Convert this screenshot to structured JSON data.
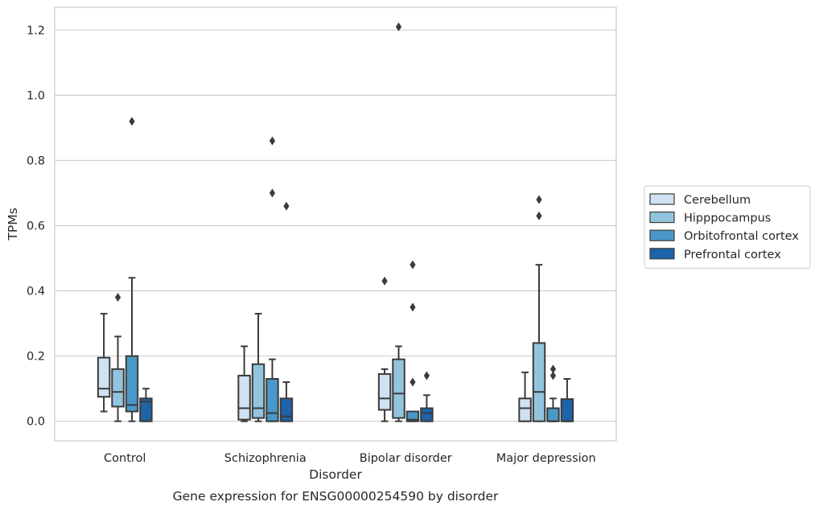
{
  "chart_data": {
    "type": "box",
    "caption": "Gene expression for ENSG00000254590 by disorder",
    "xlabel": "Disorder",
    "ylabel": "TPMs",
    "ylim": [
      -0.06,
      1.27
    ],
    "yticks": [
      0.0,
      0.2,
      0.4,
      0.6,
      0.8,
      1.0,
      1.2
    ],
    "ytick_labels": [
      "0.0",
      "0.2",
      "0.4",
      "0.6",
      "0.8",
      "1.0",
      "1.2"
    ],
    "grid": "horizontal",
    "legend_position": "right",
    "categories": [
      "Control",
      "Schizophrenia",
      "Bipolar disorder",
      "Major depression"
    ],
    "series": [
      {
        "name": "Cerebellum",
        "color": "#cfe1f2",
        "boxes": [
          {
            "whislo": 0.03,
            "q1": 0.075,
            "med": 0.1,
            "q3": 0.195,
            "whishi": 0.33,
            "fliers": []
          },
          {
            "whislo": 0.0,
            "q1": 0.005,
            "med": 0.04,
            "q3": 0.14,
            "whishi": 0.23,
            "fliers": []
          },
          {
            "whislo": 0.0,
            "q1": 0.035,
            "med": 0.07,
            "q3": 0.145,
            "whishi": 0.16,
            "fliers": [
              0.43
            ]
          },
          {
            "whislo": 0.0,
            "q1": 0.0,
            "med": 0.04,
            "q3": 0.07,
            "whishi": 0.15,
            "fliers": []
          }
        ]
      },
      {
        "name": "Hipppocampus",
        "color": "#93c4de",
        "boxes": [
          {
            "whislo": 0.0,
            "q1": 0.045,
            "med": 0.09,
            "q3": 0.16,
            "whishi": 0.26,
            "fliers": [
              0.38
            ]
          },
          {
            "whislo": 0.0,
            "q1": 0.01,
            "med": 0.04,
            "q3": 0.175,
            "whishi": 0.33,
            "fliers": []
          },
          {
            "whislo": 0.0,
            "q1": 0.01,
            "med": 0.085,
            "q3": 0.19,
            "whishi": 0.23,
            "fliers": [
              1.21
            ]
          },
          {
            "whislo": 0.0,
            "q1": 0.0,
            "med": 0.09,
            "q3": 0.24,
            "whishi": 0.48,
            "fliers": [
              0.63,
              0.68
            ]
          }
        ]
      },
      {
        "name": "Orbitofrontal cortex",
        "color": "#4a98c9",
        "boxes": [
          {
            "whislo": 0.0,
            "q1": 0.03,
            "med": 0.05,
            "q3": 0.2,
            "whishi": 0.44,
            "fliers": [
              0.92
            ]
          },
          {
            "whislo": 0.0,
            "q1": 0.0,
            "med": 0.025,
            "q3": 0.13,
            "whishi": 0.19,
            "fliers": [
              0.7,
              0.86
            ]
          },
          {
            "whislo": 0.0,
            "q1": 0.0,
            "med": 0.005,
            "q3": 0.03,
            "whishi": 0.03,
            "fliers": [
              0.12,
              0.35,
              0.48
            ]
          },
          {
            "whislo": 0.0,
            "q1": 0.0,
            "med": 0.0,
            "q3": 0.04,
            "whishi": 0.07,
            "fliers": [
              0.14,
              0.16
            ]
          }
        ]
      },
      {
        "name": "Prefrontal cortex",
        "color": "#1d63a8",
        "boxes": [
          {
            "whislo": 0.0,
            "q1": 0.0,
            "med": 0.06,
            "q3": 0.07,
            "whishi": 0.1,
            "fliers": []
          },
          {
            "whislo": 0.0,
            "q1": 0.0,
            "med": 0.015,
            "q3": 0.07,
            "whishi": 0.12,
            "fliers": [
              0.66
            ]
          },
          {
            "whislo": 0.0,
            "q1": 0.0,
            "med": 0.025,
            "q3": 0.04,
            "whishi": 0.08,
            "fliers": [
              0.14
            ]
          },
          {
            "whislo": 0.0,
            "q1": 0.0,
            "med": 0.0,
            "q3": 0.068,
            "whishi": 0.13,
            "fliers": []
          }
        ]
      }
    ]
  }
}
